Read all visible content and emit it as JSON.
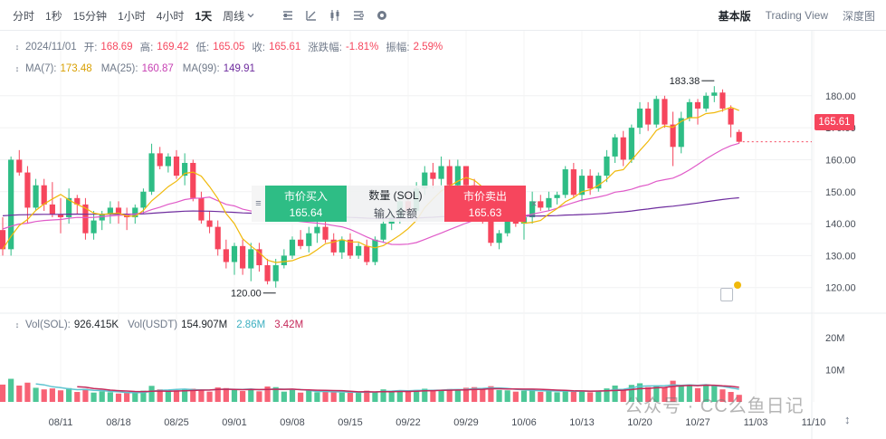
{
  "toolbar": {
    "intervals": [
      "分时",
      "1秒",
      "15分钟",
      "1小时",
      "4小时",
      "1天"
    ],
    "active_interval": "1天",
    "more_label": "周线",
    "icons": [
      "indicator-icon",
      "drawing-icon",
      "candle-type-icon",
      "compare-icon",
      "settings-icon"
    ],
    "views": [
      "基本版",
      "Trading View",
      "深度图"
    ],
    "active_view": "基本版"
  },
  "ohlc": {
    "date": "2024/11/01",
    "open_label": "开:",
    "open": "168.69",
    "high_label": "高:",
    "high": "169.42",
    "low_label": "低:",
    "low": "165.05",
    "close_label": "收:",
    "close": "165.61",
    "change_label": "涨跌幅:",
    "change": "-1.81%",
    "amplitude_label": "振幅:",
    "amplitude": "2.59%"
  },
  "ma": {
    "ma7_label": "MA(7):",
    "ma7": "173.48",
    "ma25_label": "MA(25):",
    "ma25": "160.87",
    "ma99_label": "MA(99):",
    "ma99": "149.91"
  },
  "volume": {
    "sol_label": "Vol(SOL):",
    "sol": "926.415K",
    "usdt_label": "Vol(USDT)",
    "usdt": "154.907M",
    "ma5": "2.86M",
    "ma10": "3.42M"
  },
  "trade_panel": {
    "buy_label": "市价买入",
    "buy_price": "165.64",
    "qty_label": "数量 (SOL)",
    "qty_sub": "输入金额",
    "sell_label": "市价卖出",
    "sell_price": "165.63"
  },
  "current_price": "165.61",
  "watermark": "公众号 · CC么鱼日记",
  "colors": {
    "up": "#2ebd85",
    "down": "#f6465d",
    "ma7": "#f0b90b",
    "ma25": "#e05ac8",
    "ma99": "#6e2c9e",
    "vol_ma5": "#5ec4d0",
    "vol_ma10": "#c5295a"
  },
  "chart_data": {
    "type": "candlestick",
    "x_ticks": [
      "08/11",
      "08/18",
      "08/25",
      "09/01",
      "09/08",
      "09/15",
      "09/22",
      "09/29",
      "10/06",
      "10/13",
      "10/20",
      "10/27",
      "11/03",
      "11/10"
    ],
    "y_ticks": [
      120,
      130,
      140,
      150,
      160,
      170,
      180
    ],
    "y_range": [
      112,
      189
    ],
    "volume_ticks": [
      "10M",
      "20M"
    ],
    "volume_range_M": [
      0,
      24
    ],
    "high_annotation": "183.38",
    "low_annotation": "120.00",
    "start_date": "2024-08-04",
    "candles": [
      [
        138,
        142,
        130,
        132
      ],
      [
        132,
        161,
        130,
        160
      ],
      [
        160,
        163,
        155,
        156
      ],
      [
        156,
        158,
        140,
        145
      ],
      [
        145,
        154,
        144,
        152
      ],
      [
        152,
        154,
        144,
        146
      ],
      [
        146,
        153,
        142,
        143
      ],
      [
        143,
        148,
        137,
        142
      ],
      [
        142,
        151,
        140,
        148
      ],
      [
        148,
        149,
        143,
        146
      ],
      [
        146,
        148,
        135,
        137
      ],
      [
        137,
        144,
        135,
        141
      ],
      [
        141,
        144,
        138,
        143
      ],
      [
        143,
        147,
        140,
        145
      ],
      [
        145,
        147,
        140,
        143
      ],
      [
        143,
        145,
        138,
        142
      ],
      [
        142,
        146,
        140,
        145
      ],
      [
        145,
        151,
        143,
        150
      ],
      [
        150,
        165,
        149,
        162
      ],
      [
        162,
        164,
        157,
        158
      ],
      [
        158,
        162,
        156,
        161
      ],
      [
        161,
        163,
        154,
        155
      ],
      [
        155,
        162,
        152,
        159
      ],
      [
        159,
        160,
        147,
        148
      ],
      [
        148,
        150,
        140,
        141
      ],
      [
        141,
        144,
        137,
        139
      ],
      [
        139,
        141,
        130,
        132
      ],
      [
        132,
        135,
        126,
        128
      ],
      [
        128,
        134,
        124,
        133
      ],
      [
        133,
        135,
        124,
        126
      ],
      [
        126,
        134,
        122,
        132
      ],
      [
        132,
        134,
        125,
        127
      ],
      [
        127,
        129,
        121,
        122
      ],
      [
        122,
        129,
        120,
        127
      ],
      [
        127,
        132,
        126,
        130
      ],
      [
        130,
        136,
        129,
        135
      ],
      [
        135,
        138,
        132,
        133
      ],
      [
        133,
        139,
        131,
        137
      ],
      [
        137,
        142,
        134,
        139
      ],
      [
        139,
        141,
        134,
        135
      ],
      [
        135,
        137,
        130,
        131
      ],
      [
        131,
        136,
        129,
        135
      ],
      [
        135,
        137,
        129,
        130
      ],
      [
        130,
        134,
        129,
        133
      ],
      [
        133,
        135,
        127,
        128
      ],
      [
        128,
        136,
        127,
        135
      ],
      [
        135,
        142,
        134,
        140
      ],
      [
        140,
        144,
        138,
        142
      ],
      [
        142,
        149,
        140,
        147
      ],
      [
        147,
        150,
        142,
        144
      ],
      [
        144,
        153,
        143,
        151
      ],
      [
        151,
        158,
        149,
        156
      ],
      [
        156,
        159,
        151,
        154
      ],
      [
        154,
        161,
        152,
        158
      ],
      [
        158,
        160,
        151,
        152
      ],
      [
        152,
        160,
        150,
        158
      ],
      [
        158,
        158,
        150,
        152
      ],
      [
        152,
        154,
        144,
        145
      ],
      [
        145,
        147,
        140,
        141
      ],
      [
        141,
        143,
        133,
        134
      ],
      [
        134,
        138,
        132,
        137
      ],
      [
        137,
        144,
        136,
        142
      ],
      [
        142,
        145,
        139,
        140
      ],
      [
        140,
        144,
        135,
        142
      ],
      [
        142,
        150,
        140,
        147
      ],
      [
        147,
        149,
        144,
        145
      ],
      [
        145,
        150,
        144,
        148
      ],
      [
        148,
        150,
        146,
        149
      ],
      [
        149,
        158,
        148,
        157
      ],
      [
        157,
        159,
        148,
        149
      ],
      [
        149,
        157,
        147,
        155
      ],
      [
        155,
        157,
        149,
        151
      ],
      [
        151,
        156,
        150,
        155
      ],
      [
        155,
        163,
        153,
        161
      ],
      [
        161,
        168,
        159,
        167
      ],
      [
        167,
        169,
        158,
        160
      ],
      [
        160,
        171,
        159,
        170
      ],
      [
        170,
        178,
        168,
        176
      ],
      [
        176,
        178,
        169,
        171
      ],
      [
        171,
        180,
        170,
        179
      ],
      [
        179,
        180,
        170,
        171
      ],
      [
        171,
        175,
        158,
        164
      ],
      [
        164,
        175,
        162,
        173
      ],
      [
        173,
        179,
        172,
        178
      ],
      [
        178,
        179,
        171,
        176
      ],
      [
        176,
        181,
        175,
        180
      ],
      [
        180,
        183,
        178,
        181
      ],
      [
        181,
        182,
        175,
        176
      ],
      [
        176,
        177,
        167,
        171
      ],
      [
        168.69,
        169.42,
        165.05,
        165.61
      ]
    ],
    "volumes_M": [
      5.4,
      7.2,
      5.1,
      6.0,
      4.4,
      3.9,
      4.2,
      3.6,
      4.3,
      3.1,
      4.1,
      2.9,
      3.3,
      3.0,
      2.6,
      2.8,
      2.7,
      3.5,
      5.0,
      3.9,
      3.4,
      3.6,
      4.0,
      4.1,
      3.6,
      3.2,
      4.5,
      4.3,
      4.0,
      3.4,
      3.9,
      3.3,
      4.8,
      4.6,
      3.2,
      3.7,
      2.9,
      3.5,
      3.0,
      3.2,
      3.1,
      2.9,
      3.0,
      2.8,
      3.5,
      3.2,
      3.9,
      3.4,
      3.6,
      3.2,
      3.7,
      4.1,
      3.5,
      3.8,
      4.0,
      3.8,
      4.4,
      4.6,
      4.2,
      4.9,
      3.7,
      3.6,
      3.2,
      3.5,
      4.0,
      3.1,
      3.4,
      3.0,
      3.6,
      3.4,
      3.5,
      3.0,
      3.3,
      4.2,
      5.1,
      4.0,
      5.3,
      5.8,
      4.6,
      5.2,
      4.4,
      6.6,
      5.0,
      5.4,
      4.3,
      5.5,
      5.1,
      3.9,
      3.1,
      2.2
    ]
  }
}
